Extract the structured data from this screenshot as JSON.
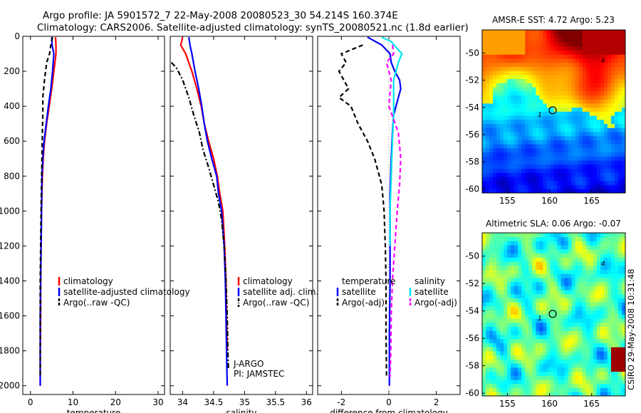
{
  "header": {
    "line1": "Argo profile: JA 5901572_7 22-May-2008 20080523_30 54.214S 160.374E",
    "line2": "Climatology: CARS2006. Satellite-adjusted climatology: synTS_20080521.nc (1.8d earlier)"
  },
  "stamp": "CSIRO 29-May-2008 10:31:48",
  "colors": {
    "climatology": "#ff0000",
    "satellite": "#0000ff",
    "argo": "#000000",
    "salinity_satellite": "#00e5ee",
    "salinity_argo": "#ff00ff"
  },
  "chart_data": [
    {
      "type": "line",
      "xlabel": "temperature",
      "ylabel": "",
      "xlim": [
        -1.8,
        31.5
      ],
      "ylim": [
        2050,
        0
      ],
      "xticks": [
        0,
        10,
        20,
        30
      ],
      "yticks": [
        0,
        200,
        400,
        600,
        800,
        1000,
        1200,
        1400,
        1600,
        1800,
        2000
      ],
      "legend": [
        "climatology",
        "satellite-adjusted climatology",
        "Argo(..raw -QC)"
      ],
      "series": [
        {
          "name": "climatology",
          "color": "#ff0000",
          "dash": "solid",
          "x": [
            5.9,
            6.0,
            6.0,
            5.5,
            5.0,
            4.4,
            3.8,
            3.3,
            3.0,
            2.8,
            2.6,
            2.5,
            2.4,
            2.4,
            2.3,
            2.3
          ],
          "y": [
            5,
            50,
            100,
            200,
            300,
            400,
            500,
            600,
            700,
            800,
            1000,
            1200,
            1400,
            1600,
            1800,
            2000
          ]
        },
        {
          "name": "satellite-adjusted climatology",
          "color": "#0000ff",
          "dash": "solid",
          "x": [
            5.0,
            5.1,
            5.5,
            5.2,
            4.8,
            4.2,
            3.7,
            3.2,
            2.9,
            2.7,
            2.6,
            2.5,
            2.4,
            2.3,
            2.3,
            2.3
          ],
          "y": [
            5,
            50,
            100,
            200,
            300,
            400,
            500,
            600,
            700,
            800,
            1000,
            1200,
            1400,
            1600,
            1800,
            2000
          ]
        },
        {
          "name": "Argo(..raw -QC)",
          "color": "#000000",
          "dash": "dash",
          "x": [
            5.2,
            4.8,
            4.5,
            3.8,
            3.3,
            2.9,
            2.9,
            2.8,
            2.7,
            2.6,
            2.5,
            2.4,
            2.3,
            2.3,
            2.3,
            2.3
          ],
          "y": [
            5,
            50,
            100,
            150,
            250,
            350,
            450,
            550,
            700,
            850,
            1000,
            1200,
            1400,
            1600,
            1800,
            1950
          ]
        }
      ]
    },
    {
      "type": "line",
      "xlabel": "salinity",
      "ylabel": "",
      "xlim": [
        33.8,
        36.1
      ],
      "ylim": [
        2050,
        0
      ],
      "xticks": [
        34,
        34.5,
        35,
        35.5,
        36
      ],
      "yticks": [],
      "legend": [
        "climatology",
        "satellite adj. clim.",
        "Argo(..raw -QC)"
      ],
      "annotations": [
        "J-ARGO",
        "PI: JAMSTEC"
      ],
      "series": [
        {
          "name": "climatology",
          "color": "#ff0000",
          "dash": "solid",
          "x": [
            34.0,
            33.97,
            34.05,
            34.15,
            34.23,
            34.3,
            34.35,
            34.42,
            34.5,
            34.56,
            34.6,
            34.65,
            34.68,
            34.7,
            34.71,
            34.72
          ],
          "y": [
            5,
            50,
            100,
            200,
            300,
            400,
            500,
            600,
            700,
            800,
            900,
            1000,
            1200,
            1400,
            1600,
            1800
          ]
        },
        {
          "name": "satellite adj. clim.",
          "color": "#0000ff",
          "dash": "solid",
          "x": [
            34.1,
            34.12,
            34.15,
            34.2,
            34.26,
            34.31,
            34.35,
            34.4,
            34.47,
            34.55,
            34.58,
            34.63,
            34.67,
            34.69,
            34.7,
            34.71,
            34.72
          ],
          "y": [
            5,
            50,
            100,
            200,
            300,
            400,
            500,
            600,
            700,
            800,
            900,
            1000,
            1200,
            1400,
            1600,
            1800,
            2000
          ]
        },
        {
          "name": "Argo(..raw -QC)",
          "color": "#000000",
          "dash": "dashdot",
          "x": [
            33.82,
            33.9,
            34.0,
            34.1,
            34.18,
            34.27,
            34.33,
            34.42,
            34.5,
            34.58,
            34.63,
            34.67,
            34.7,
            34.72,
            34.73,
            34.74
          ],
          "y": [
            150,
            180,
            250,
            350,
            450,
            550,
            650,
            750,
            850,
            950,
            1050,
            1200,
            1400,
            1600,
            1800,
            1900
          ]
        }
      ]
    },
    {
      "type": "line",
      "xlabel": "difference from climatology",
      "ylabel": "",
      "xlim": [
        -3.0,
        3.0
      ],
      "ylim": [
        2050,
        0
      ],
      "xticks": [
        -2,
        0,
        2
      ],
      "yticks": [],
      "legend": [
        "temperature",
        "satellite",
        "Argo(-adj)",
        "salinity",
        "satellite",
        "Argo(-adj)"
      ],
      "series": [
        {
          "name": "satellite",
          "color": "#0000ff",
          "dash": "solid",
          "x": [
            -0.9,
            -0.3,
            0.05,
            0.1,
            0.25,
            0.45,
            0.5,
            0.4,
            0.2,
            0.15,
            0.1,
            0.05,
            0.05,
            0.05,
            0.02,
            0.02
          ],
          "y": [
            5,
            50,
            100,
            150,
            200,
            250,
            300,
            350,
            450,
            550,
            700,
            900,
            1100,
            1400,
            1700,
            2000
          ]
        },
        {
          "name": "Argo(-adj)",
          "color": "#000000",
          "dash": "dash",
          "x": [
            -1.1,
            -2.0,
            -1.8,
            -2.1,
            -1.7,
            -2.1,
            -1.6,
            -1.3,
            -0.9,
            -0.6,
            -0.3,
            -0.2,
            -0.15,
            -0.12,
            -0.12,
            -0.1
          ],
          "y": [
            50,
            100,
            150,
            200,
            300,
            350,
            400,
            500,
            600,
            700,
            850,
            1000,
            1200,
            1400,
            1700,
            1950
          ]
        },
        {
          "name": "satellite",
          "color": "#00e5ee",
          "dash": "solid",
          "x": [
            -0.3,
            0.1,
            0.35,
            0.55,
            0.4,
            0.2,
            0.2,
            0.15,
            0.1,
            0.05,
            0.05
          ],
          "y": [
            5,
            30,
            70,
            100,
            150,
            250,
            450,
            600,
            800,
            1000,
            1200
          ]
        },
        {
          "name": "Argo(-adj)",
          "color": "#ff00ff",
          "dash": "dash",
          "x": [
            0.15,
            0.2,
            -0.1,
            0.1,
            0.0,
            0.4,
            0.5,
            0.45,
            0.35,
            0.25,
            0.15,
            0.1,
            0.08,
            0.05
          ],
          "y": [
            50,
            100,
            150,
            250,
            400,
            550,
            700,
            850,
            1000,
            1200,
            1400,
            1600,
            1800,
            1950
          ]
        }
      ]
    }
  ],
  "maps": [
    {
      "title": "AMSR-E SST: 4.72 Argo: 5.23",
      "type": "heatmap",
      "xticks": [
        155,
        160,
        165
      ],
      "yticks": [
        -50,
        -52,
        -54,
        -56,
        -58,
        -60
      ],
      "xlim": [
        152,
        169
      ],
      "ylim": [
        -60.3,
        -48.3
      ],
      "markers": [
        "4",
        "1"
      ],
      "profile_position": {
        "lon": 160.374,
        "lat": -54.214
      }
    },
    {
      "title": "Altimetric SLA: 0.06 Argo: -0.07",
      "type": "heatmap",
      "xticks": [
        155,
        160,
        165
      ],
      "yticks": [
        -50,
        -52,
        -54,
        -56,
        -58,
        -60
      ],
      "xlim": [
        152,
        169
      ],
      "ylim": [
        -60.2,
        -48.3
      ],
      "markers": [
        "4",
        "1"
      ],
      "profile_position": {
        "lon": 160.374,
        "lat": -54.214
      }
    }
  ]
}
